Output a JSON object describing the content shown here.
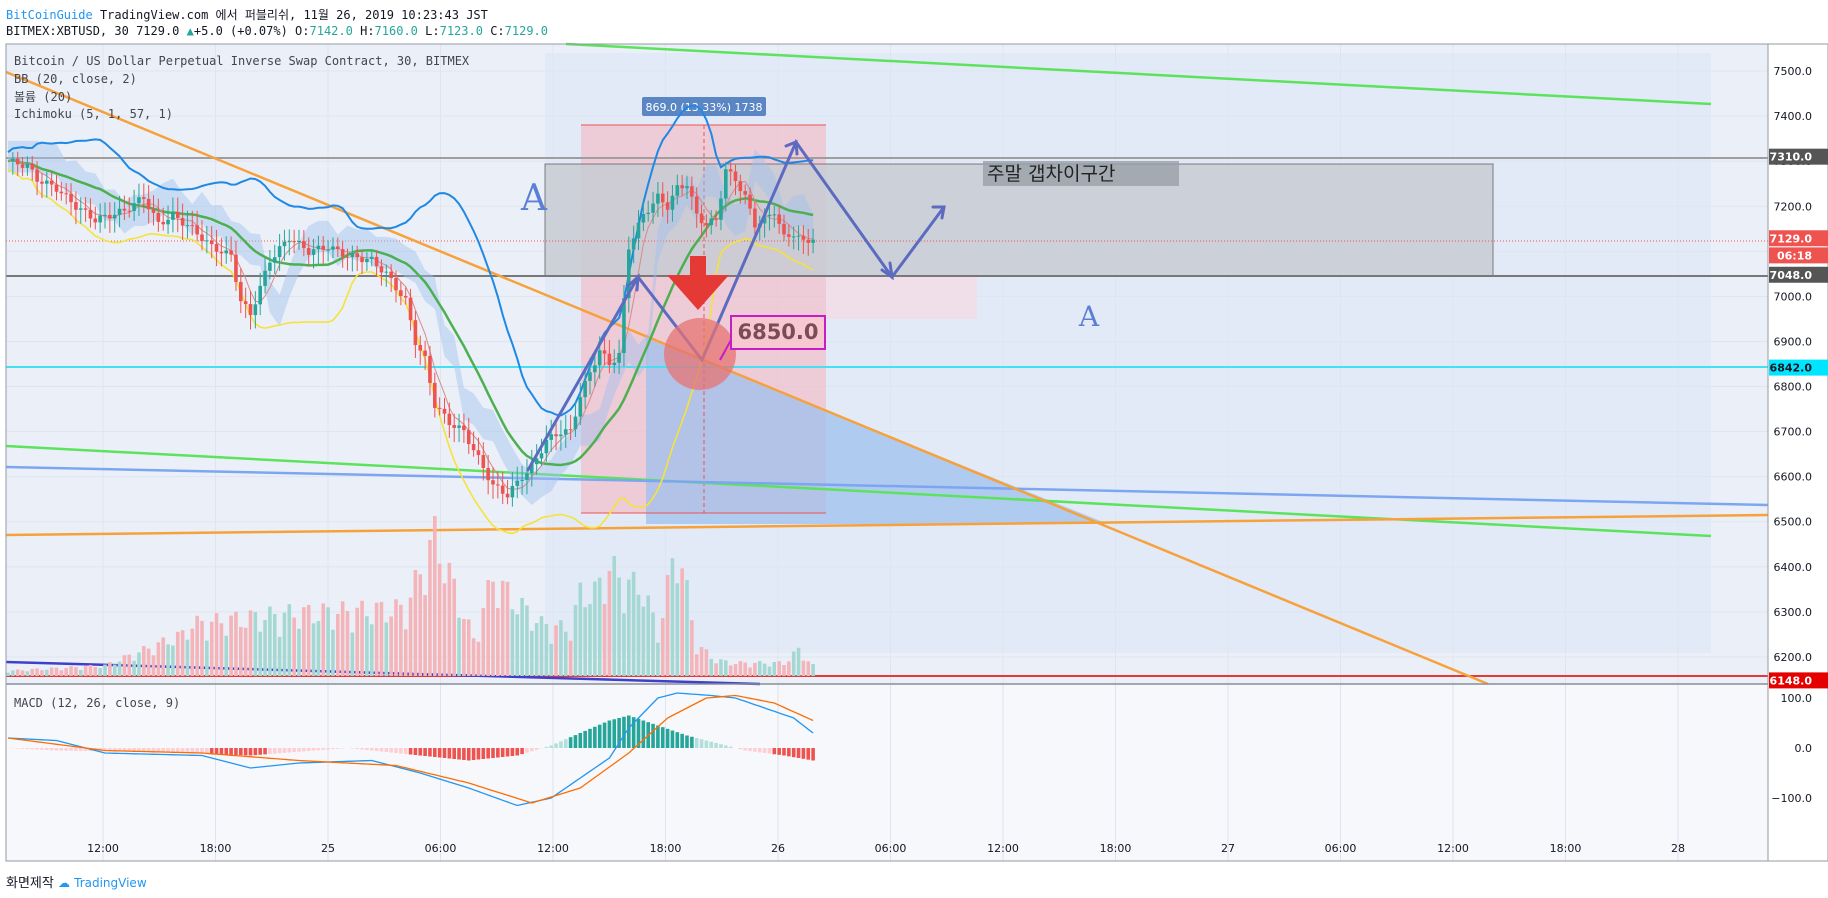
{
  "header": {
    "brand": "BitCoinGuide",
    "published": "TradingView.com 에서 퍼블리쉬, 11월 26, 2019 10:23:43 JST",
    "symbol": "BITMEX:XBTUSD, 30",
    "last": "7129.0",
    "change": "+5.0 (+0.07%)",
    "o_label": "O:",
    "o": "7142.0",
    "h_label": "H:",
    "h": "7160.0",
    "l_label": "L:",
    "l": "7123.0",
    "c_label": "C:",
    "c": "7129.0"
  },
  "legend": {
    "title": "Bitcoin / US Dollar Perpetual Inverse Swap Contract, 30, BITMEX",
    "bb": "BB (20, close, 2)",
    "volume": "볼륨 (20)",
    "ichimoku": "Ichimoku (5, 1, 57, 1)",
    "macd": "MACD (12, 26, close, 9)"
  },
  "annotations": {
    "measure": "869.0 (13.33%) 1738",
    "zone": "주말 갭차이구간",
    "price_note": "6850.0",
    "letter_a": "A"
  },
  "price_tags": [
    {
      "text": "7310.0",
      "price": 7310,
      "color": "#555555"
    },
    {
      "text": "7129.0",
      "price": 7129,
      "color": "#ef5350"
    },
    {
      "text": "06:18",
      "price": 7091,
      "color": "#ef5350"
    },
    {
      "text": "7048.0",
      "price": 7048,
      "color": "#555555"
    },
    {
      "text": "6842.0",
      "price": 6842,
      "color": "#00e5ff"
    },
    {
      "text": "6148.0",
      "price": 6148,
      "color": "#e50000"
    }
  ],
  "footer": {
    "made": "화면제작",
    "brand": "TradingView"
  },
  "colors": {
    "up": "#26a69a",
    "down": "#ef5350",
    "bb": "#1e88e5",
    "green": "#4caf50",
    "lime": "#5be35b",
    "orange": "#f7a13b",
    "yellow": "#f5e23b",
    "blue_line": "#7da6f0"
  },
  "chart_data": {
    "type": "candlestick",
    "interval": "30",
    "x_ticks": [
      "12:00",
      "18:00",
      "25",
      "06:00",
      "12:00",
      "18:00",
      "26",
      "06:00",
      "12:00",
      "18:00",
      "27",
      "06:00",
      "12:00",
      "18:00",
      "28"
    ],
    "y_ticks": [
      6200,
      6300,
      6400,
      6500,
      6600,
      6700,
      6800,
      6900,
      7000,
      7100,
      7200,
      7300,
      7400,
      7500
    ],
    "ylim": [
      6140,
      7560
    ],
    "macd_ticks": [
      {
        "v": 100,
        "t": "100.0"
      },
      {
        "v": 0,
        "t": "0.0"
      },
      {
        "v": -100,
        "t": "−100.0"
      }
    ],
    "macd_ylim": [
      -140,
      130
    ],
    "anchors": [
      [
        0,
        7300
      ],
      [
        4,
        7290
      ],
      [
        6,
        7260
      ],
      [
        10,
        7240
      ],
      [
        14,
        7200
      ],
      [
        18,
        7170
      ],
      [
        24,
        7190
      ],
      [
        28,
        7220
      ],
      [
        31,
        7160
      ],
      [
        34,
        7180
      ],
      [
        38,
        7150
      ],
      [
        42,
        7110
      ],
      [
        46,
        7090
      ],
      [
        48,
        6990
      ],
      [
        50,
        6960
      ],
      [
        54,
        7080
      ],
      [
        58,
        7130
      ],
      [
        62,
        7100
      ],
      [
        66,
        7110
      ],
      [
        70,
        7090
      ],
      [
        75,
        7080
      ],
      [
        78,
        7050
      ],
      [
        82,
        6990
      ],
      [
        84,
        6900
      ],
      [
        86,
        6860
      ],
      [
        88,
        6760
      ],
      [
        91,
        6720
      ],
      [
        94,
        6700
      ],
      [
        98,
        6620
      ],
      [
        100,
        6580
      ],
      [
        103,
        6560
      ],
      [
        106,
        6600
      ],
      [
        108,
        6620
      ],
      [
        111,
        6680
      ],
      [
        114,
        6700
      ],
      [
        116,
        6700
      ],
      [
        118,
        6780
      ],
      [
        120,
        6830
      ],
      [
        122,
        6880
      ],
      [
        124,
        6850
      ],
      [
        126,
        6870
      ],
      [
        128,
        7110
      ],
      [
        131,
        7180
      ],
      [
        134,
        7220
      ],
      [
        136,
        7200
      ],
      [
        138,
        7240
      ],
      [
        140,
        7250
      ],
      [
        142,
        7180
      ],
      [
        144,
        7160
      ],
      [
        146,
        7170
      ],
      [
        148,
        7280
      ],
      [
        150,
        7260
      ],
      [
        152,
        7220
      ],
      [
        154,
        7160
      ],
      [
        156,
        7170
      ],
      [
        158,
        7190
      ],
      [
        160,
        7130
      ],
      [
        162,
        7140
      ],
      [
        164,
        7120
      ],
      [
        166,
        7130
      ]
    ],
    "macd": [
      [
        0,
        20
      ],
      [
        10,
        15
      ],
      [
        20,
        -10
      ],
      [
        40,
        -15
      ],
      [
        50,
        -40
      ],
      [
        60,
        -30
      ],
      [
        75,
        -25
      ],
      [
        85,
        -50
      ],
      [
        95,
        -80
      ],
      [
        105,
        -115
      ],
      [
        112,
        -100
      ],
      [
        118,
        -60
      ],
      [
        124,
        -20
      ],
      [
        128,
        40
      ],
      [
        134,
        100
      ],
      [
        138,
        110
      ],
      [
        145,
        105
      ],
      [
        150,
        100
      ],
      [
        156,
        80
      ],
      [
        162,
        60
      ],
      [
        166,
        30
      ]
    ],
    "signal": [
      [
        0,
        20
      ],
      [
        20,
        -5
      ],
      [
        40,
        -10
      ],
      [
        60,
        -25
      ],
      [
        80,
        -35
      ],
      [
        95,
        -70
      ],
      [
        108,
        -110
      ],
      [
        118,
        -80
      ],
      [
        128,
        -10
      ],
      [
        136,
        60
      ],
      [
        144,
        100
      ],
      [
        150,
        105
      ],
      [
        158,
        90
      ],
      [
        166,
        55
      ]
    ],
    "hist": [
      [
        0,
        0
      ],
      [
        10,
        -5
      ],
      [
        30,
        -8
      ],
      [
        50,
        -15
      ],
      [
        70,
        0
      ],
      [
        85,
        -15
      ],
      [
        95,
        -25
      ],
      [
        105,
        -15
      ],
      [
        112,
        5
      ],
      [
        118,
        30
      ],
      [
        124,
        55
      ],
      [
        128,
        65
      ],
      [
        134,
        45
      ],
      [
        140,
        25
      ],
      [
        148,
        5
      ],
      [
        152,
        -5
      ],
      [
        160,
        -15
      ],
      [
        166,
        -25
      ]
    ],
    "volume": [
      [
        0,
        10
      ],
      [
        10,
        15
      ],
      [
        20,
        20
      ],
      [
        36,
        80
      ],
      [
        38,
        100
      ],
      [
        48,
        110
      ],
      [
        58,
        120
      ],
      [
        82,
        130
      ],
      [
        88,
        270
      ],
      [
        96,
        70
      ],
      [
        100,
        190
      ],
      [
        104,
        150
      ],
      [
        110,
        100
      ],
      [
        116,
        90
      ],
      [
        118,
        160
      ],
      [
        121,
        160
      ],
      [
        124,
        210
      ],
      [
        127,
        180
      ],
      [
        131,
        170
      ],
      [
        134,
        80
      ],
      [
        136,
        170
      ],
      [
        138,
        260
      ],
      [
        142,
        60
      ],
      [
        146,
        30
      ],
      [
        150,
        25
      ],
      [
        160,
        25
      ],
      [
        163,
        50
      ],
      [
        166,
        20
      ]
    ]
  }
}
